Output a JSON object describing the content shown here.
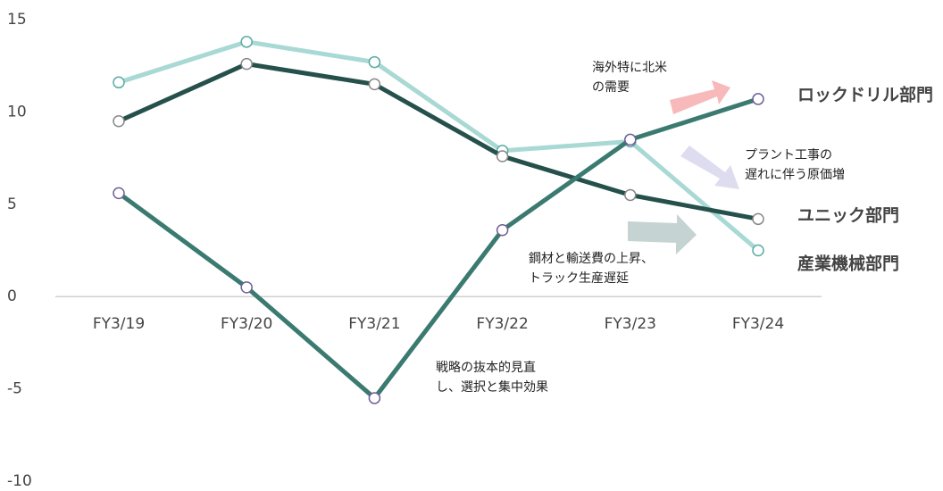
{
  "chart_data": {
    "type": "line",
    "categories": [
      "FY3/19",
      "FY3/20",
      "FY3/21",
      "FY3/22",
      "FY3/23",
      "FY3/24"
    ],
    "series": [
      {
        "name": "産業機械部門",
        "color": "#a9d9d5",
        "marker": "#5aaba4",
        "values": [
          11.6,
          13.8,
          12.7,
          7.9,
          8.4,
          2.5
        ]
      },
      {
        "name": "ユニック部門",
        "color": "#25504b",
        "marker": "#888888",
        "values": [
          9.5,
          12.6,
          11.5,
          7.6,
          5.5,
          4.2
        ]
      },
      {
        "name": "ロックドリル部門",
        "color": "#3b7a71",
        "marker": "#6f5f95",
        "values": [
          5.6,
          0.5,
          -5.5,
          3.6,
          8.5,
          10.7
        ]
      }
    ],
    "ylim": [
      -10,
      15
    ],
    "yticks": [
      -10,
      -5,
      0,
      5,
      10,
      15
    ],
    "annotations": [
      {
        "lines": [
          "海外特に北米",
          "の需要"
        ]
      },
      {
        "lines": [
          "プラント工事の",
          "遅れに伴う原価増"
        ]
      },
      {
        "lines": [
          "鋼材と輸送費の上昇、",
          "トラック生産遅延"
        ]
      },
      {
        "lines": [
          "戦略の抜本的見直",
          "し、選択と集中効果"
        ]
      }
    ]
  }
}
